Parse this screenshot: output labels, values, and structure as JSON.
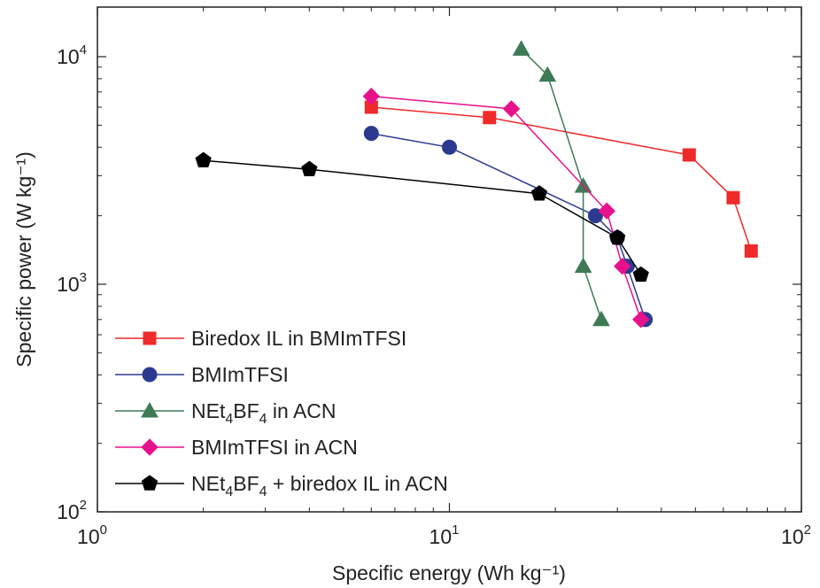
{
  "chart_data": {
    "type": "line",
    "title": "",
    "xlabel": "Specific energy (Wh kg⁻¹)",
    "ylabel": "Specific power (W kg⁻¹)",
    "x_scale": "log",
    "y_scale": "log",
    "xlim": [
      1,
      100
    ],
    "ylim": [
      100,
      17000
    ],
    "x_ticks": [
      {
        "value": 1,
        "base": "10",
        "exp": "0"
      },
      {
        "value": 10,
        "base": "10",
        "exp": "1"
      },
      {
        "value": 100,
        "base": "10",
        "exp": "2"
      }
    ],
    "y_ticks": [
      {
        "value": 100,
        "base": "10",
        "exp": "2"
      },
      {
        "value": 1000,
        "base": "10",
        "exp": "3"
      },
      {
        "value": 10000,
        "base": "10",
        "exp": "4"
      }
    ],
    "grid": false,
    "legend_position": "bottom-left",
    "series": [
      {
        "name": "Biredox IL in BMImTFSI",
        "label_parts": [
          {
            "t": "Biredox IL in BMImTFSI"
          }
        ],
        "color": "#ee2a2a",
        "marker": "square",
        "points": [
          [
            6,
            6000
          ],
          [
            13,
            5400
          ],
          [
            48,
            3700
          ],
          [
            64,
            2400
          ],
          [
            72,
            1400
          ]
        ]
      },
      {
        "name": "BMImTFSI",
        "label_parts": [
          {
            "t": "BMImTFSI"
          }
        ],
        "color": "#2b3a8f",
        "marker": "circle",
        "points": [
          [
            6,
            4600
          ],
          [
            10,
            4000
          ],
          [
            26,
            2000
          ],
          [
            30,
            1600
          ],
          [
            32,
            1200
          ],
          [
            36,
            700
          ]
        ]
      },
      {
        "name": "NEt4BF4 in ACN",
        "label_parts": [
          {
            "t": "NEt"
          },
          {
            "t": "4",
            "sub": true
          },
          {
            "t": "BF"
          },
          {
            "t": "4",
            "sub": true
          },
          {
            "t": " in ACN"
          }
        ],
        "color": "#3e7a55",
        "marker": "triangle",
        "points": [
          [
            16,
            10800
          ],
          [
            19,
            8300
          ],
          [
            24,
            2700
          ],
          [
            24,
            1200
          ],
          [
            27,
            700
          ]
        ]
      },
      {
        "name": "BMImTFSI in ACN",
        "label_parts": [
          {
            "t": "BMImTFSI in ACN"
          }
        ],
        "color": "#e8118c",
        "marker": "diamond",
        "points": [
          [
            6,
            6700
          ],
          [
            15,
            5900
          ],
          [
            28,
            2100
          ],
          [
            31,
            1200
          ],
          [
            35,
            700
          ]
        ]
      },
      {
        "name": "NEt4BF4 + biredox IL in ACN",
        "label_parts": [
          {
            "t": "NEt"
          },
          {
            "t": "4",
            "sub": true
          },
          {
            "t": "BF"
          },
          {
            "t": "4",
            "sub": true
          },
          {
            "t": " + biredox IL in ACN"
          }
        ],
        "color": "#000000",
        "marker": "pentagon",
        "points": [
          [
            2,
            3500
          ],
          [
            4,
            3200
          ],
          [
            18,
            2500
          ],
          [
            30,
            1600
          ],
          [
            35,
            1100
          ]
        ]
      }
    ]
  }
}
